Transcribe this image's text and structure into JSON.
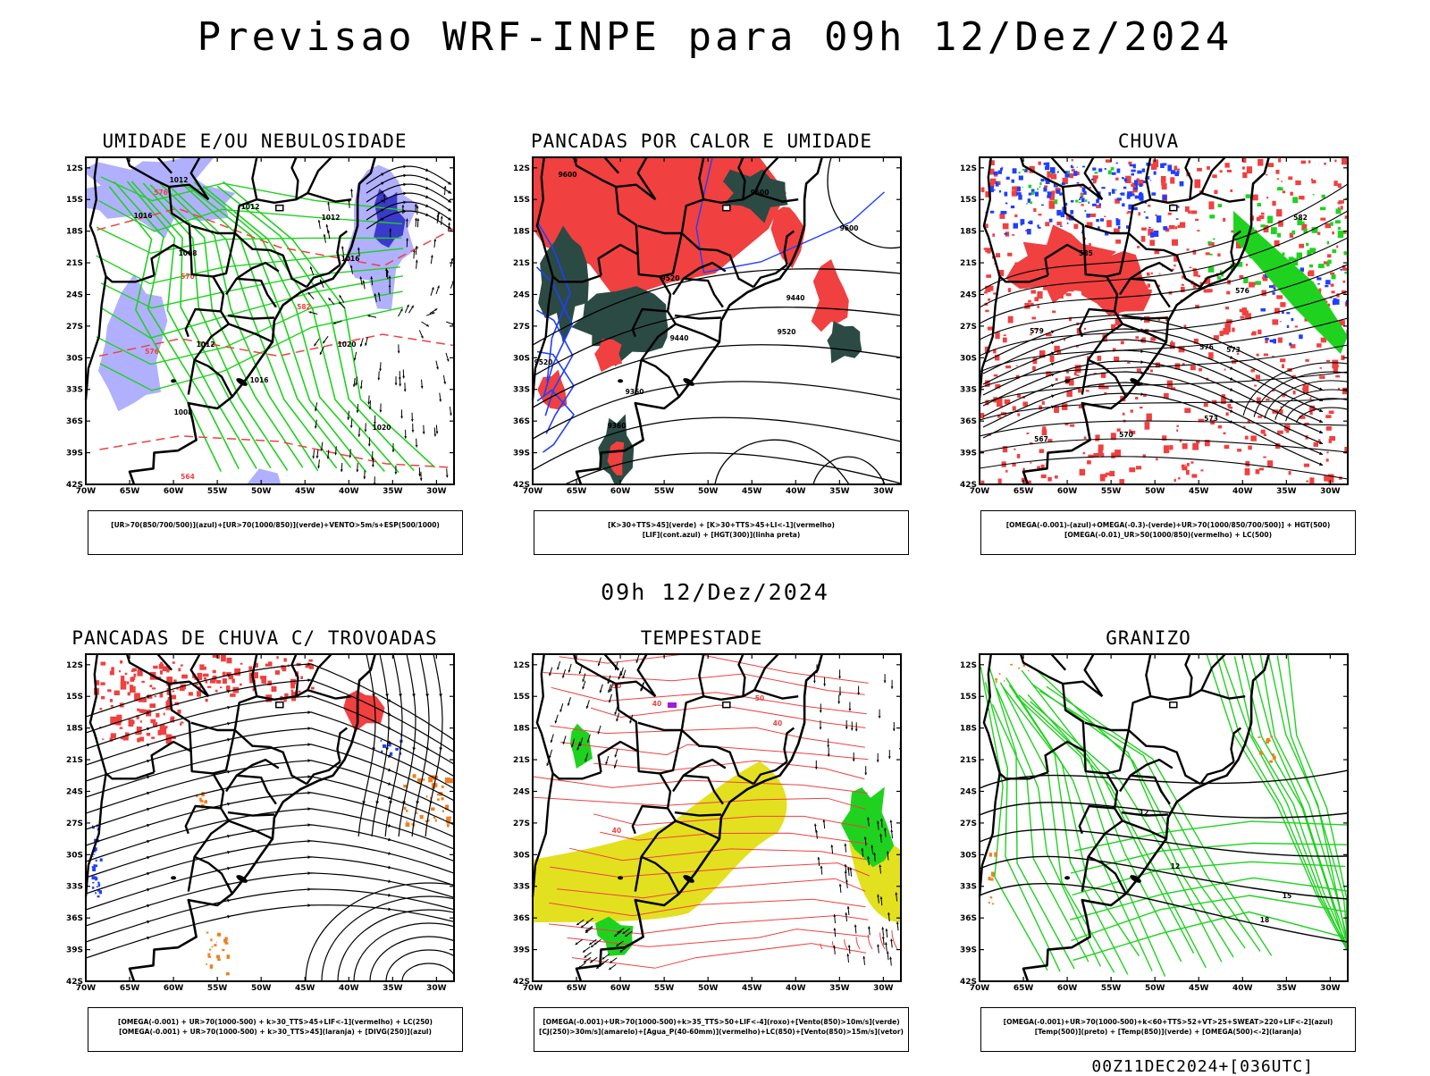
{
  "header": {
    "title": "Previsao WRF-INPE  para 09h 12/Dez/2024",
    "subtitle": "09h 12/Dez/2024",
    "run_stamp": "00Z11DEC2024+[036UTC]"
  },
  "axes": {
    "lat_labels": [
      "12S",
      "15S",
      "18S",
      "21S",
      "24S",
      "27S",
      "30S",
      "33S",
      "36S",
      "39S",
      "42S"
    ],
    "lon_labels": [
      "70W",
      "65W",
      "60W",
      "55W",
      "50W",
      "45W",
      "40W",
      "35W",
      "30W"
    ]
  },
  "colors": {
    "red": "#f04040",
    "green": "#1fd21f",
    "blue": "#1f3fff",
    "lavender": "#b0b0ff",
    "darkgreen": "#2b4a44",
    "yellow": "#e3e01f",
    "orange": "#ee8020",
    "purple": "#9a1fe0"
  },
  "panels": [
    {
      "title": "UMIDADE E/OU NEBULOSIDADE",
      "legend": [
        "[UR>70(850/700/500)](azul)+[UR>70(1000/850)](verde)+VENTO>5m/s+ESP(500/1000)"
      ],
      "contour_labels": [
        "1012",
        "1012",
        "1016",
        "1008",
        "1012",
        "1016",
        "1020",
        "1016",
        "1012",
        "1008",
        "1020",
        "1008",
        "570",
        "576",
        "582",
        "564",
        "576"
      ]
    },
    {
      "title": "PANCADAS POR CALOR E UMIDADE",
      "legend": [
        "[K>30+TTS>45](verde) + [K>30+TTS>45+LI<-1](vermelho)",
        "[LIF](cont.azul) + [HGT(300)](linha preta)"
      ],
      "contour_labels": [
        "9600",
        "9600",
        "9600",
        "9600",
        "9520",
        "9440",
        "9520",
        "9440",
        "9360",
        "9520",
        "9360"
      ]
    },
    {
      "title": "CHUVA",
      "legend": [
        "[OMEGA(-0.001)-(azul)+OMEGA(-0.3)-(verde)+UR>70(1000/850/700/500)] + HGT(500)",
        "[OMEGA(-0.01)_UR>50(1000/850)(vermelho) + LC(500)"
      ],
      "contour_labels": [
        "582",
        "585",
        "576",
        "573",
        "579",
        "576",
        "573",
        "570",
        "567",
        "570"
      ]
    },
    {
      "title": "PANCADAS DE CHUVA C/ TROVOADAS",
      "legend": [
        "[OMEGA(-0.001) + UR>70(1000-500) + k>30_TTS>45+LIF<-1](vermelho) + LC(250)",
        "[OMEGA(-0.001) + UR>70(1000-500) + k>30_TTS>45](laranja) + [DIVG(250)](azul)"
      ],
      "contour_labels": []
    },
    {
      "title": "TEMPESTADE",
      "legend": [
        "[OMEGA(-0.001)+UR>70(1000-500)+k>35_TTS>50+LIF<-4](roxo)+[Vento(850)>10m/s](verde)",
        "[CJ(250)>30m/s](amarelo)+[Agua_P(40-60mm)](vermelho)+LC(850)+[Vento(850)>15m/s](vetor)"
      ],
      "contour_labels": [
        "50",
        "40",
        "50",
        "40",
        "40"
      ]
    },
    {
      "title": "GRANIZO",
      "legend": [
        "[OMEGA(-0.001)+UR>70(1000-500)+k<60+TTS>52+VT>25+SWEAT>220+LIF<-2](azul)",
        "[Temp(500)](preto) + [Temp(850)](verde) + [OMEGA(500)<-2](laranja)"
      ],
      "contour_labels": [
        "-12",
        "-12",
        "-15",
        "-18"
      ]
    }
  ]
}
